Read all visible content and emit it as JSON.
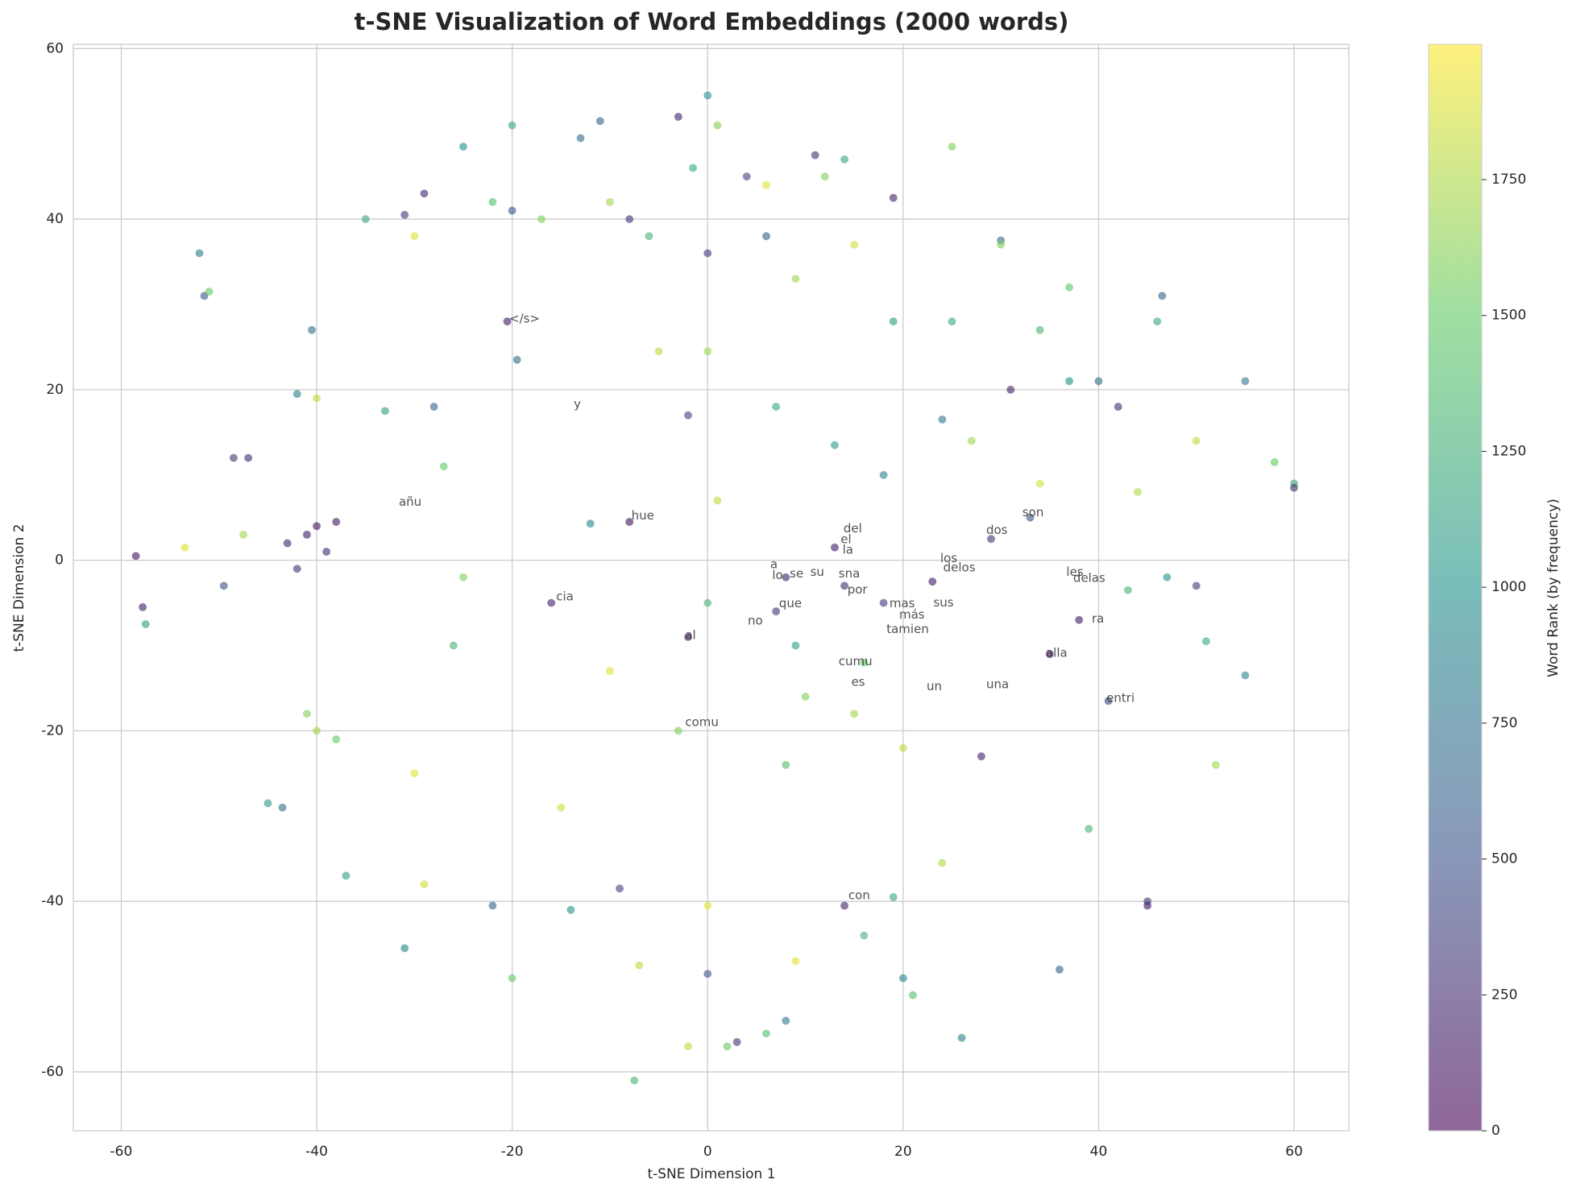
{
  "chart_data": {
    "type": "scatter",
    "title": "t-SNE Visualization of Word Embeddings (2000 words)",
    "x_label": "t-SNE Dimension 1",
    "y_label": "t-SNE Dimension 2",
    "colorbar_label": "Word Rank (by frequency)",
    "colormap": "viridis",
    "alpha": 0.6,
    "grid": true,
    "xlim": [
      -64.9,
      65.6
    ],
    "ylim": [
      -66.9,
      60.5
    ],
    "xticks": [
      -60,
      -40,
      -20,
      0,
      20,
      40,
      60
    ],
    "yticks": [
      -60,
      -40,
      -20,
      0,
      20,
      40,
      60
    ],
    "clim": [
      0,
      1999
    ],
    "cticks": [
      0,
      250,
      500,
      750,
      1000,
      1250,
      1500,
      1750
    ],
    "x": [
      -58.5,
      -57.8,
      -57.5,
      -53.5,
      -52,
      -51.5,
      -51,
      -48.5,
      -47,
      -49.5,
      -47.5,
      -43,
      -42,
      -41,
      -40,
      -39,
      -38,
      -42,
      -40,
      -40.5,
      -45,
      -43.5,
      -41,
      -40,
      -38,
      -37,
      -35,
      -33,
      -31,
      -29,
      -30,
      -28,
      -27,
      -25,
      -30,
      -31,
      -29,
      -26,
      -25,
      -22,
      -20,
      -20.5,
      -20,
      -19.5,
      -17,
      -16,
      -15,
      -14,
      -20,
      -22,
      -13,
      -11,
      -10,
      -8,
      -6,
      -5,
      -8,
      -12,
      -10,
      -7.5,
      -7,
      -9,
      -3,
      0,
      1,
      -1.5,
      0,
      0,
      -2,
      1,
      0,
      -3,
      -2,
      0,
      -2,
      0,
      2,
      3,
      4,
      6,
      6,
      7,
      9,
      8,
      7,
      9,
      10,
      8,
      9,
      8,
      6,
      11,
      12,
      14,
      15,
      13,
      13,
      14,
      16,
      15,
      14,
      16,
      19,
      19,
      18,
      18,
      20,
      19,
      20,
      21,
      25,
      24,
      25,
      23,
      24,
      26,
      27,
      29,
      30,
      30,
      31,
      33,
      34,
      34,
      35,
      36,
      37,
      37,
      38,
      39,
      40,
      42,
      41,
      45,
      46,
      45,
      46.5,
      47,
      50,
      50,
      51,
      52,
      55,
      55,
      58,
      60,
      60,
      44,
      43,
      28
    ],
    "y": [
      0.5,
      -5.5,
      -7.5,
      1.5,
      36,
      31,
      31.5,
      12,
      12,
      -3,
      3,
      2,
      -1,
      3,
      4,
      1,
      4.5,
      19.5,
      19,
      27,
      -28.5,
      -29,
      -18,
      -20,
      -21,
      -37,
      40,
      17.5,
      40.5,
      43,
      38,
      18,
      11,
      -2,
      -25,
      -45.5,
      -38,
      -10,
      48.5,
      42,
      41,
      28,
      51,
      23.5,
      40,
      -5,
      -29,
      -41,
      -49,
      -40.5,
      49.5,
      51.5,
      42,
      40,
      38,
      24.5,
      4.5,
      4.3,
      -13,
      -61,
      -47.5,
      -38.5,
      52,
      54.5,
      51,
      46,
      36,
      24.5,
      17,
      7,
      -5,
      -20,
      -9,
      -40.5,
      -57,
      -48.5,
      -57,
      -56.5,
      45,
      44,
      38,
      18,
      33,
      -2,
      -6,
      -10,
      -16,
      -24,
      -47,
      -54,
      -55.5,
      47.5,
      45,
      47,
      37,
      13.5,
      1.5,
      -3,
      -12,
      -18,
      -40.5,
      -44,
      42.5,
      28,
      10,
      -5,
      -22,
      -39.5,
      -49,
      -51,
      48.5,
      16.5,
      28,
      -2.5,
      -35.5,
      -56,
      14,
      2.5,
      37.5,
      37,
      20,
      5,
      27,
      9,
      -11,
      -48,
      32,
      21,
      -7,
      -31.5,
      21,
      18,
      -16.5,
      -40,
      28,
      -40.5,
      31,
      -2,
      14,
      -3,
      -9.5,
      -24,
      21,
      -13.5,
      11.5,
      9,
      8.5,
      8,
      -3.5,
      -23
    ],
    "rank": [
      100,
      150,
      1100,
      1900,
      800,
      500,
      1500,
      300,
      250,
      500,
      1700,
      200,
      300,
      150,
      100,
      250,
      150,
      900,
      1800,
      700,
      1100,
      700,
      1600,
      1700,
      1500,
      1100,
      1200,
      1100,
      300,
      200,
      1900,
      600,
      1500,
      1600,
      1900,
      900,
      1850,
      1300,
      1000,
      1400,
      500,
      150,
      1200,
      700,
      1600,
      200,
      1850,
      1000,
      1500,
      600,
      700,
      600,
      1700,
      300,
      1300,
      1800,
      100,
      900,
      1900,
      1300,
      1800,
      400,
      200,
      1000,
      1600,
      1200,
      300,
      1700,
      400,
      1800,
      1300,
      1600,
      150,
      1900,
      1800,
      500,
      1500,
      300,
      400,
      1900,
      600,
      1200,
      1700,
      200,
      300,
      1100,
      1600,
      1400,
      1900,
      800,
      1400,
      300,
      1600,
      1200,
      1850,
      1100,
      150,
      250,
      1500,
      1700,
      200,
      1300,
      200,
      1100,
      900,
      350,
      1800,
      1200,
      900,
      1400,
      1600,
      800,
      1200,
      150,
      1750,
      900,
      1700,
      300,
      700,
      1600,
      200,
      500,
      1300,
      1850,
      100,
      600,
      1500,
      1000,
      150,
      1300,
      700,
      250,
      400,
      300,
      1200,
      150,
      600,
      1000,
      1800,
      350,
      1200,
      1700,
      800,
      900,
      1500,
      1200,
      300,
      1750,
      1300,
      200
    ],
    "annotations": [
      {
        "text": "</s>",
        "x": -20.3,
        "y": 28.3
      },
      {
        "text": "y",
        "x": -13.7,
        "y": 18.3
      },
      {
        "text": "añu",
        "x": -31.6,
        "y": 6.8
      },
      {
        "text": "hue",
        "x": -7.8,
        "y": 5.2
      },
      {
        "text": "son",
        "x": 32.2,
        "y": 5.6
      },
      {
        "text": "dos",
        "x": 28.5,
        "y": 3.5
      },
      {
        "text": "del",
        "x": 13.9,
        "y": 3.7
      },
      {
        "text": "el",
        "x": 13.6,
        "y": 2.4
      },
      {
        "text": "la",
        "x": 13.8,
        "y": 1.2
      },
      {
        "text": "los",
        "x": 23.8,
        "y": 0.2
      },
      {
        "text": "delos",
        "x": 24.1,
        "y": -0.9
      },
      {
        "text": "a",
        "x": 6.4,
        "y": -0.5
      },
      {
        "text": "lo",
        "x": 6.6,
        "y": -1.8
      },
      {
        "text": "se",
        "x": 8.4,
        "y": -1.6
      },
      {
        "text": "su",
        "x": 10.5,
        "y": -1.4
      },
      {
        "text": "sna",
        "x": 13.4,
        "y": -1.6
      },
      {
        "text": "les",
        "x": 36.7,
        "y": -1.4
      },
      {
        "text": "delas",
        "x": 37.4,
        "y": -2.1
      },
      {
        "text": "cia",
        "x": -15.5,
        "y": -4.3
      },
      {
        "text": "que",
        "x": 7.3,
        "y": -5.1
      },
      {
        "text": "por",
        "x": 14.3,
        "y": -3.5
      },
      {
        "text": "mas",
        "x": 18.6,
        "y": -5.1
      },
      {
        "text": "más",
        "x": 19.6,
        "y": -6.4
      },
      {
        "text": "sus",
        "x": 23.1,
        "y": -5.0
      },
      {
        "text": "no",
        "x": 4.1,
        "y": -7.1
      },
      {
        "text": "ra",
        "x": 39.3,
        "y": -6.9
      },
      {
        "text": "al",
        "x": -2.3,
        "y": -8.8
      },
      {
        "text": "tamien",
        "x": 18.3,
        "y": -8.1
      },
      {
        "text": "alla",
        "x": 34.6,
        "y": -10.9
      },
      {
        "text": "cumu",
        "x": 13.4,
        "y": -11.9
      },
      {
        "text": "es",
        "x": 14.7,
        "y": -14.3
      },
      {
        "text": "un",
        "x": 22.4,
        "y": -14.8
      },
      {
        "text": "una",
        "x": 28.5,
        "y": -14.6
      },
      {
        "text": "entri",
        "x": 40.8,
        "y": -16.2
      },
      {
        "text": "comu",
        "x": -2.3,
        "y": -19.0
      },
      {
        "text": "con",
        "x": 14.4,
        "y": -39.3
      }
    ]
  }
}
